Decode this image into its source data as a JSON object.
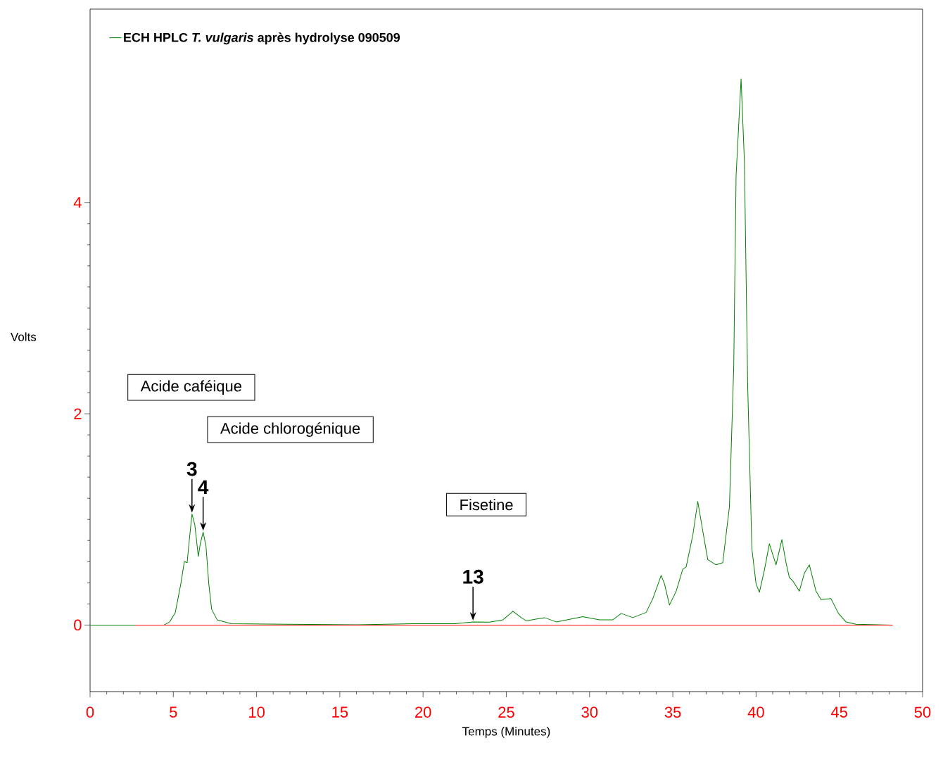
{
  "chart_data": {
    "type": "line",
    "xlabel": "Temps (Minutes)",
    "ylabel": "Volts",
    "xlim": [
      0,
      50
    ],
    "ylim": [
      -0.63,
      5.83
    ],
    "xticks": [
      0,
      5,
      10,
      15,
      20,
      25,
      30,
      35,
      40,
      45,
      50
    ],
    "yticks": [
      0,
      2,
      4
    ],
    "legend": "top left",
    "grid": false,
    "marker": "none",
    "line_style": "solid",
    "series": [
      {
        "name": "ECH  HPLC *T. vulgaris* après hydrolyse 090509",
        "color": "#008000",
        "x": [
          0,
          4.44,
          4.78,
          5.12,
          5.45,
          5.66,
          5.83,
          5.95,
          6.12,
          6.29,
          6.5,
          6.62,
          6.79,
          6.96,
          7.13,
          7.3,
          7.63,
          8.47,
          11.8,
          16,
          19.4,
          21.9,
          23.0,
          24.0,
          24.8,
          25.4,
          25.9,
          26.2,
          27.3,
          28.0,
          29.6,
          30.6,
          31.4,
          31.9,
          32.6,
          33.4,
          33.8,
          34.3,
          34.5,
          34.8,
          35.2,
          35.6,
          35.8,
          36.2,
          36.5,
          36.8,
          37.1,
          37.6,
          38.0,
          38.4,
          38.66,
          38.8,
          39.1,
          39.3,
          39.5,
          39.75,
          40.0,
          40.2,
          40.5,
          40.8,
          41.2,
          41.55,
          41.8,
          42.0,
          42.2,
          42.6,
          42.9,
          43.2,
          43.6,
          43.9,
          44.5,
          44.95,
          45.4,
          46.0,
          48.2
        ],
        "values": [
          0,
          0,
          0.03,
          0.12,
          0.39,
          0.6,
          0.59,
          0.79,
          1.05,
          0.95,
          0.65,
          0.77,
          0.88,
          0.75,
          0.39,
          0.15,
          0.05,
          0.013,
          0.007,
          0.003,
          0.013,
          0.013,
          0.03,
          0.027,
          0.05,
          0.13,
          0.07,
          0.04,
          0.07,
          0.03,
          0.08,
          0.05,
          0.05,
          0.11,
          0.07,
          0.12,
          0.25,
          0.47,
          0.39,
          0.19,
          0.32,
          0.53,
          0.55,
          0.85,
          1.17,
          0.89,
          0.62,
          0.57,
          0.59,
          1.12,
          2.45,
          4.25,
          5.17,
          4.39,
          2.25,
          0.72,
          0.39,
          0.31,
          0.52,
          0.77,
          0.57,
          0.81,
          0.59,
          0.45,
          0.42,
          0.32,
          0.49,
          0.57,
          0.32,
          0.24,
          0.25,
          0.11,
          0.03,
          0.007,
          0
        ]
      },
      {
        "color": "#ff0000",
        "x": [
          2.7,
          48.2
        ],
        "values": [
          0,
          0
        ]
      }
    ],
    "annotations": [
      "Acide caféique",
      "Acide chlorogénique",
      "Fisetine",
      {
        "text": "3",
        "x": 6.12,
        "y": 1.05
      },
      {
        "text": "4",
        "x": 6.79,
        "y": 0.88
      },
      {
        "text": "13",
        "x": 23.0,
        "y": 0.03
      }
    ]
  }
}
